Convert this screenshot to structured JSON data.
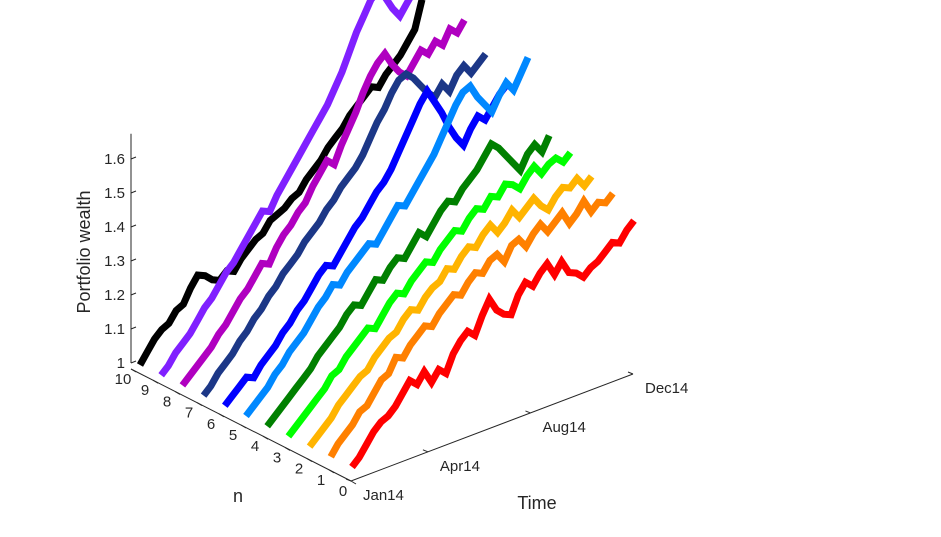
{
  "chart_data": {
    "type": "line",
    "view": "3d",
    "title": "",
    "xlabel": "Time",
    "ylabel": "n",
    "zlabel": "Portfolio wealth",
    "x_tick_labels": [
      "Jan14",
      "Apr14",
      "Aug14",
      "Dec14"
    ],
    "x_tick_months": [
      0,
      3,
      7,
      11
    ],
    "x_range_months": [
      0,
      11
    ],
    "n_tick_labels": [
      "0",
      "1",
      "2",
      "3",
      "4",
      "5",
      "6",
      "7",
      "8",
      "9",
      "10"
    ],
    "n_range": [
      0,
      10
    ],
    "z_tick_values": [
      1,
      1.1,
      1.2,
      1.3,
      1.4,
      1.5,
      1.6
    ],
    "z_tick_labels": [
      "1",
      "1.1",
      "1.2",
      "1.3",
      "1.4",
      "1.5",
      "1.6"
    ],
    "z_range": [
      1,
      1.68
    ],
    "grid": false,
    "legend": "none",
    "series": [
      {
        "n": 0,
        "color": "#ff0000",
        "values": [
          1.0,
          1.02,
          1.05,
          1.08,
          1.1,
          1.11,
          1.13,
          1.16,
          1.19,
          1.17,
          1.2,
          1.16,
          1.19,
          1.17,
          1.22,
          1.25,
          1.27,
          1.25,
          1.3,
          1.34,
          1.3,
          1.28,
          1.27,
          1.32,
          1.35,
          1.33,
          1.36,
          1.38,
          1.34,
          1.37,
          1.33,
          1.32,
          1.3,
          1.32,
          1.33,
          1.35,
          1.37,
          1.36,
          1.39,
          1.41
        ]
      },
      {
        "n": 1,
        "color": "#ff8000",
        "values": [
          1.0,
          1.03,
          1.05,
          1.07,
          1.1,
          1.11,
          1.14,
          1.17,
          1.18,
          1.22,
          1.21,
          1.24,
          1.26,
          1.28,
          1.27,
          1.3,
          1.32,
          1.34,
          1.33,
          1.36,
          1.38,
          1.37,
          1.4,
          1.41,
          1.38,
          1.42,
          1.43,
          1.4,
          1.43,
          1.45,
          1.42,
          1.44,
          1.46,
          1.42,
          1.44,
          1.47,
          1.43,
          1.45,
          1.44,
          1.46
        ]
      },
      {
        "n": 2,
        "color": "#ffb400",
        "values": [
          1.0,
          1.02,
          1.04,
          1.06,
          1.09,
          1.11,
          1.13,
          1.15,
          1.16,
          1.19,
          1.21,
          1.23,
          1.24,
          1.27,
          1.29,
          1.28,
          1.31,
          1.33,
          1.34,
          1.37,
          1.36,
          1.39,
          1.41,
          1.4,
          1.43,
          1.45,
          1.42,
          1.44,
          1.47,
          1.44,
          1.46,
          1.48,
          1.45,
          1.43,
          1.46,
          1.48,
          1.47,
          1.49,
          1.46,
          1.48
        ]
      },
      {
        "n": 3,
        "color": "#00ff00",
        "values": [
          1.0,
          1.02,
          1.04,
          1.06,
          1.08,
          1.1,
          1.13,
          1.14,
          1.17,
          1.19,
          1.21,
          1.23,
          1.22,
          1.25,
          1.28,
          1.3,
          1.29,
          1.32,
          1.34,
          1.36,
          1.35,
          1.38,
          1.4,
          1.42,
          1.41,
          1.44,
          1.46,
          1.45,
          1.48,
          1.47,
          1.5,
          1.49,
          1.47,
          1.5,
          1.52,
          1.49,
          1.51,
          1.52,
          1.5,
          1.52
        ]
      },
      {
        "n": 4,
        "color": "#008000",
        "values": [
          1.0,
          1.02,
          1.04,
          1.06,
          1.08,
          1.1,
          1.12,
          1.15,
          1.17,
          1.19,
          1.21,
          1.24,
          1.26,
          1.25,
          1.28,
          1.31,
          1.3,
          1.33,
          1.35,
          1.34,
          1.37,
          1.4,
          1.38,
          1.41,
          1.44,
          1.46,
          1.45,
          1.48,
          1.5,
          1.52,
          1.55,
          1.58,
          1.56,
          1.53,
          1.5,
          1.47,
          1.51,
          1.53,
          1.5,
          1.54
        ]
      },
      {
        "n": 5,
        "color": "#0088ff",
        "values": [
          1.0,
          1.02,
          1.04,
          1.06,
          1.09,
          1.11,
          1.14,
          1.16,
          1.18,
          1.21,
          1.24,
          1.26,
          1.29,
          1.28,
          1.31,
          1.33,
          1.35,
          1.37,
          1.36,
          1.39,
          1.42,
          1.45,
          1.44,
          1.47,
          1.5,
          1.53,
          1.56,
          1.6,
          1.64,
          1.68,
          1.71,
          1.72,
          1.68,
          1.65,
          1.62,
          1.66,
          1.69,
          1.66,
          1.7,
          1.74
        ]
      },
      {
        "n": 6,
        "color": "#0000ff",
        "values": [
          1.0,
          1.02,
          1.04,
          1.06,
          1.05,
          1.08,
          1.1,
          1.12,
          1.15,
          1.17,
          1.2,
          1.22,
          1.25,
          1.28,
          1.3,
          1.29,
          1.32,
          1.35,
          1.38,
          1.4,
          1.43,
          1.46,
          1.48,
          1.51,
          1.55,
          1.59,
          1.63,
          1.67,
          1.7,
          1.66,
          1.62,
          1.57,
          1.53,
          1.5,
          1.54,
          1.57,
          1.55,
          1.58,
          1.61,
          1.63
        ]
      },
      {
        "n": 7,
        "color": "#1c3787",
        "values": [
          1.0,
          1.02,
          1.05,
          1.07,
          1.09,
          1.12,
          1.14,
          1.17,
          1.19,
          1.22,
          1.24,
          1.27,
          1.29,
          1.31,
          1.34,
          1.36,
          1.38,
          1.41,
          1.43,
          1.46,
          1.48,
          1.5,
          1.53,
          1.57,
          1.61,
          1.64,
          1.68,
          1.71,
          1.72,
          1.7,
          1.67,
          1.64,
          1.62,
          1.65,
          1.62,
          1.66,
          1.68,
          1.65,
          1.67,
          1.69
        ]
      },
      {
        "n": 8,
        "color": "#b000c0",
        "values": [
          1.0,
          1.02,
          1.04,
          1.06,
          1.08,
          1.11,
          1.13,
          1.16,
          1.19,
          1.21,
          1.24,
          1.27,
          1.26,
          1.3,
          1.33,
          1.35,
          1.38,
          1.4,
          1.44,
          1.47,
          1.5,
          1.48,
          1.53,
          1.57,
          1.61,
          1.66,
          1.7,
          1.73,
          1.75,
          1.71,
          1.68,
          1.66,
          1.69,
          1.72,
          1.7,
          1.73,
          1.71,
          1.75,
          1.73,
          1.76
        ]
      },
      {
        "n": 9,
        "color": "#8020ff",
        "values": [
          1.0,
          1.02,
          1.05,
          1.07,
          1.09,
          1.12,
          1.15,
          1.17,
          1.2,
          1.23,
          1.25,
          1.28,
          1.31,
          1.34,
          1.37,
          1.36,
          1.4,
          1.43,
          1.46,
          1.49,
          1.52,
          1.55,
          1.58,
          1.61,
          1.65,
          1.69,
          1.74,
          1.79,
          1.83,
          1.87,
          1.89,
          1.86,
          1.82,
          1.79,
          1.82,
          1.85,
          1.88,
          1.84,
          1.87,
          1.89
        ]
      },
      {
        "n": 10,
        "color": "#000000",
        "values": [
          1.0,
          1.03,
          1.06,
          1.08,
          1.09,
          1.12,
          1.13,
          1.17,
          1.2,
          1.19,
          1.17,
          1.16,
          1.18,
          1.17,
          1.2,
          1.22,
          1.24,
          1.25,
          1.28,
          1.29,
          1.3,
          1.32,
          1.33,
          1.36,
          1.38,
          1.4,
          1.43,
          1.45,
          1.47,
          1.5,
          1.52,
          1.54,
          1.56,
          1.55,
          1.58,
          1.6,
          1.62,
          1.65,
          1.68,
          1.76
        ]
      }
    ]
  }
}
